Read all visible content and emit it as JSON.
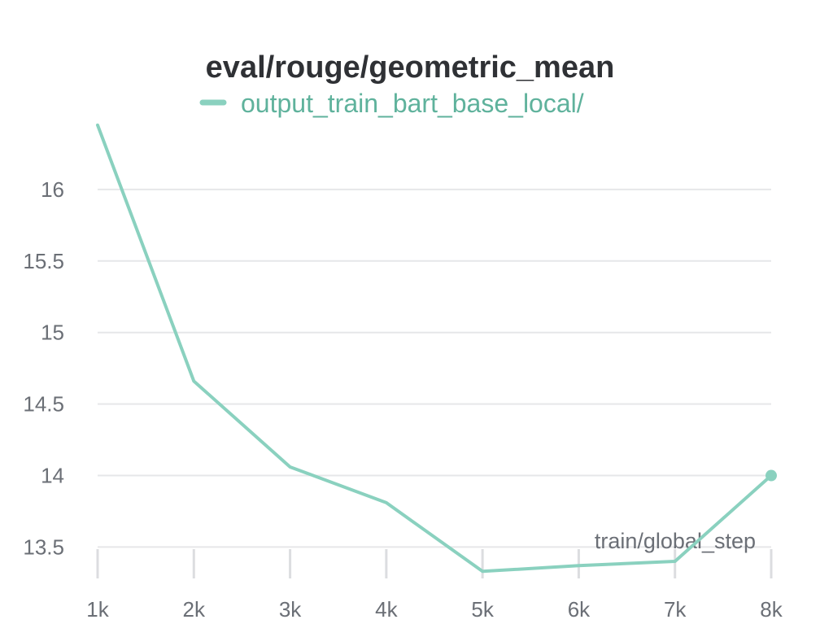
{
  "chart_data": {
    "type": "line",
    "title": "eval/rouge/geometric_mean",
    "xlabel": "train/global_step",
    "ylabel": "",
    "xlim": [
      1000,
      8000
    ],
    "ylim": [
      13.4,
      16.5
    ],
    "x_ticks": [
      {
        "value": 1000,
        "label": "1k"
      },
      {
        "value": 2000,
        "label": "2k"
      },
      {
        "value": 3000,
        "label": "3k"
      },
      {
        "value": 4000,
        "label": "4k"
      },
      {
        "value": 5000,
        "label": "5k"
      },
      {
        "value": 6000,
        "label": "6k"
      },
      {
        "value": 7000,
        "label": "7k"
      },
      {
        "value": 8000,
        "label": "8k"
      }
    ],
    "y_ticks": [
      {
        "value": 13.5,
        "label": "13.5"
      },
      {
        "value": 14,
        "label": "14"
      },
      {
        "value": 14.5,
        "label": "14.5"
      },
      {
        "value": 15,
        "label": "15"
      },
      {
        "value": 15.5,
        "label": "15.5"
      },
      {
        "value": 16,
        "label": "16"
      }
    ],
    "grid": true,
    "legend_position": "top-center",
    "series": [
      {
        "name": "output_train_bart_base_local/",
        "color": "#8ad1bf",
        "legend_color": "#5fb29c",
        "x": [
          1000,
          2000,
          3000,
          4000,
          5000,
          6000,
          7000,
          8000
        ],
        "y": [
          16.45,
          14.66,
          14.06,
          13.81,
          13.33,
          13.37,
          13.4,
          14.0
        ]
      }
    ]
  }
}
